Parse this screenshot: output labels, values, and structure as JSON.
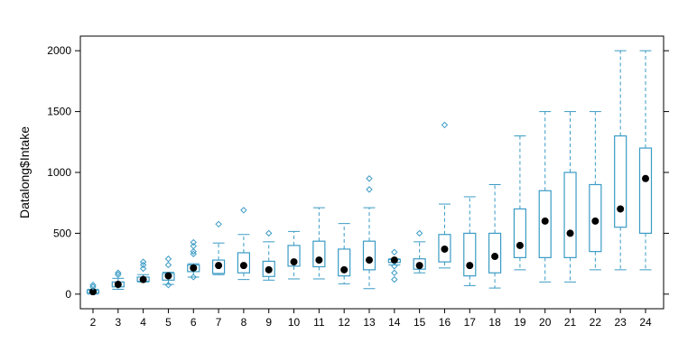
{
  "chart_data": {
    "type": "boxplot",
    "title": "",
    "xlabel": "",
    "ylabel": "Datalong$Intake",
    "ylim": [
      -120,
      2120
    ],
    "yticks": [
      0,
      500,
      1000,
      1500,
      2000
    ],
    "grid": false,
    "colors": {
      "box": "#3A9BC5",
      "median_dot": "#000000",
      "axis": "#000000"
    },
    "categories": [
      "2",
      "3",
      "4",
      "5",
      "6",
      "7",
      "8",
      "9",
      "10",
      "11",
      "12",
      "13",
      "14",
      "15",
      "16",
      "17",
      "18",
      "19",
      "20",
      "21",
      "22",
      "23",
      "24"
    ],
    "boxes": [
      {
        "x": "2",
        "whisker_low": 0,
        "q1": 10,
        "median": 20,
        "q3": 30,
        "whisker_high": 40,
        "outliers": [
          60,
          75
        ]
      },
      {
        "x": "3",
        "whisker_low": 40,
        "q1": 60,
        "median": 80,
        "q3": 100,
        "whisker_high": 130,
        "outliers": [
          160,
          175
        ]
      },
      {
        "x": "4",
        "whisker_low": 100,
        "q1": 105,
        "median": 120,
        "q3": 140,
        "whisker_high": 160,
        "outliers": [
          210,
          240,
          265
        ]
      },
      {
        "x": "5",
        "whisker_low": 80,
        "q1": 115,
        "median": 150,
        "q3": 170,
        "whisker_high": 180,
        "outliers": [
          75,
          240,
          290
        ]
      },
      {
        "x": "6",
        "whisker_low": 140,
        "q1": 185,
        "median": 215,
        "q3": 240,
        "whisker_high": 250,
        "outliers": [
          140,
          330,
          350,
          395,
          425
        ]
      },
      {
        "x": "7",
        "whisker_low": 160,
        "q1": 170,
        "median": 235,
        "q3": 280,
        "whisker_high": 420,
        "outliers": [
          575
        ]
      },
      {
        "x": "8",
        "whisker_low": 120,
        "q1": 175,
        "median": 235,
        "q3": 340,
        "whisker_high": 490,
        "outliers": [
          690
        ]
      },
      {
        "x": "9",
        "whisker_low": 115,
        "q1": 145,
        "median": 200,
        "q3": 270,
        "whisker_high": 430,
        "outliers": [
          500
        ]
      },
      {
        "x": "10",
        "whisker_low": 125,
        "q1": 230,
        "median": 265,
        "q3": 400,
        "whisker_high": 515,
        "outliers": []
      },
      {
        "x": "11",
        "whisker_low": 125,
        "q1": 225,
        "median": 280,
        "q3": 435,
        "whisker_high": 710,
        "outliers": []
      },
      {
        "x": "12",
        "whisker_low": 85,
        "q1": 150,
        "median": 200,
        "q3": 370,
        "whisker_high": 580,
        "outliers": []
      },
      {
        "x": "13",
        "whisker_low": 45,
        "q1": 200,
        "median": 280,
        "q3": 435,
        "whisker_high": 710,
        "outliers": [
          860,
          950
        ]
      },
      {
        "x": "14",
        "whisker_low": 240,
        "q1": 260,
        "median": 280,
        "q3": 285,
        "whisker_high": 290,
        "outliers": [
          120,
          175,
          230,
          345
        ]
      },
      {
        "x": "15",
        "whisker_low": 175,
        "q1": 205,
        "median": 235,
        "q3": 290,
        "whisker_high": 430,
        "outliers": [
          500
        ]
      },
      {
        "x": "16",
        "whisker_low": 215,
        "q1": 265,
        "median": 370,
        "q3": 490,
        "whisker_high": 740,
        "outliers": [
          1390
        ]
      },
      {
        "x": "17",
        "whisker_low": 70,
        "q1": 150,
        "median": 235,
        "q3": 500,
        "whisker_high": 800,
        "outliers": []
      },
      {
        "x": "18",
        "whisker_low": 50,
        "q1": 175,
        "median": 310,
        "q3": 500,
        "whisker_high": 900,
        "outliers": []
      },
      {
        "x": "19",
        "whisker_low": 200,
        "q1": 300,
        "median": 400,
        "q3": 700,
        "whisker_high": 1300,
        "outliers": []
      },
      {
        "x": "20",
        "whisker_low": 100,
        "q1": 300,
        "median": 600,
        "q3": 850,
        "whisker_high": 1500,
        "outliers": []
      },
      {
        "x": "21",
        "whisker_low": 100,
        "q1": 300,
        "median": 500,
        "q3": 1000,
        "whisker_high": 1500,
        "outliers": []
      },
      {
        "x": "22",
        "whisker_low": 200,
        "q1": 350,
        "median": 600,
        "q3": 900,
        "whisker_high": 1500,
        "outliers": []
      },
      {
        "x": "23",
        "whisker_low": 200,
        "q1": 550,
        "median": 700,
        "q3": 1300,
        "whisker_high": 2000,
        "outliers": []
      },
      {
        "x": "24",
        "whisker_low": 200,
        "q1": 500,
        "median": 950,
        "q3": 1200,
        "whisker_high": 2000,
        "outliers": []
      }
    ]
  }
}
